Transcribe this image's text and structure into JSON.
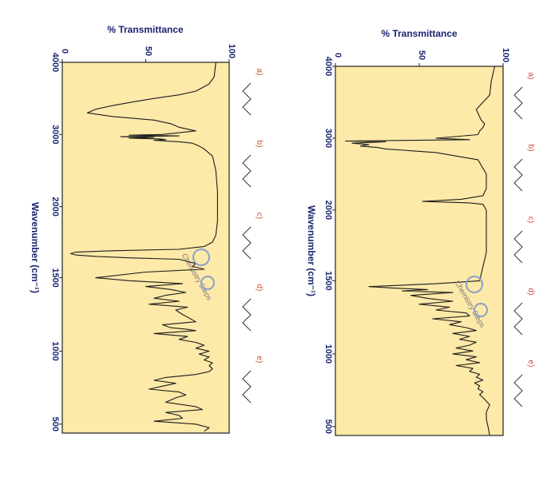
{
  "chart_data": [
    {
      "type": "line",
      "ylabel": "% Transmittance",
      "xlabel": "Wavenumber (cm⁻¹)",
      "xlim": [
        4000,
        450
      ],
      "ylim": [
        0,
        100
      ],
      "x_ticks": [
        "4000",
        "3000",
        "2000",
        "1500",
        "1000",
        "500"
      ],
      "y_ticks": [
        "0",
        "50",
        "100"
      ],
      "options": [
        "a)",
        "b)",
        "c)",
        "d)",
        "e)"
      ],
      "watermark": "Chemistry Steps",
      "background_color": "#fde9a8",
      "series": [
        {
          "x": [
            4000,
            3800,
            3600,
            3500,
            3400,
            3350,
            3300,
            3250,
            3200,
            3150,
            3100,
            3050,
            3000,
            2980,
            2960,
            2950,
            2930,
            2910,
            2890,
            2870,
            2850,
            2800,
            2700,
            2500,
            2300,
            2200,
            2150,
            2120,
            2100,
            2080,
            2000,
            1900,
            1800,
            1700,
            1650,
            1600,
            1550,
            1500,
            1480,
            1460,
            1450,
            1440,
            1430,
            1420,
            1400,
            1380,
            1360,
            1340,
            1320,
            1300,
            1280,
            1260,
            1240,
            1220,
            1200,
            1180,
            1160,
            1140,
            1120,
            1100,
            1080,
            1060,
            1040,
            1020,
            1000,
            980,
            960,
            940,
            920,
            900,
            880,
            860,
            840,
            820,
            800,
            780,
            760,
            740,
            720,
            700,
            650,
            600,
            550,
            500,
            450
          ],
          "y": [
            95,
            93,
            92,
            88,
            84,
            85,
            86,
            87,
            89,
            88,
            86,
            85,
            60,
            80,
            6,
            30,
            10,
            20,
            15,
            25,
            30,
            60,
            85,
            90,
            90,
            88,
            75,
            52,
            80,
            88,
            90,
            90,
            90,
            90,
            89,
            88,
            87,
            86,
            60,
            20,
            35,
            55,
            40,
            70,
            45,
            55,
            70,
            50,
            68,
            60,
            78,
            80,
            58,
            75,
            68,
            78,
            84,
            70,
            80,
            74,
            84,
            80,
            72,
            82,
            70,
            84,
            78,
            86,
            72,
            82,
            80,
            86,
            84,
            88,
            83,
            86,
            85,
            88,
            86,
            88,
            92,
            90,
            90,
            91,
            92
          ]
        }
      ]
    },
    {
      "type": "line",
      "ylabel": "% Transmittance",
      "xlabel": "Wavenumber (cm⁻¹)",
      "xlim": [
        4000,
        450
      ],
      "ylim": [
        0,
        100
      ],
      "x_ticks": [
        "4000",
        "3000",
        "2000",
        "1500",
        "1000",
        "500"
      ],
      "y_ticks": [
        "0",
        "50",
        "100"
      ],
      "options": [
        "a)",
        "b)",
        "c)",
        "d)",
        "e)"
      ],
      "watermark": "Chemistry Steps",
      "background_color": "#fde9a8",
      "series": [
        {
          "x": [
            4000,
            3800,
            3700,
            3600,
            3550,
            3500,
            3450,
            3400,
            3350,
            3300,
            3250,
            3200,
            3150,
            3100,
            3050,
            3000,
            2990,
            2980,
            2970,
            2960,
            2950,
            2940,
            2930,
            2920,
            2900,
            2880,
            2860,
            2840,
            2800,
            2700,
            2500,
            2200,
            2000,
            1900,
            1800,
            1750,
            1720,
            1700,
            1690,
            1680,
            1670,
            1660,
            1650,
            1640,
            1630,
            1600,
            1580,
            1560,
            1540,
            1500,
            1480,
            1460,
            1440,
            1420,
            1400,
            1380,
            1360,
            1340,
            1320,
            1300,
            1280,
            1250,
            1200,
            1180,
            1160,
            1150,
            1140,
            1120,
            1100,
            1080,
            1060,
            1040,
            1020,
            1000,
            980,
            960,
            940,
            920,
            900,
            880,
            860,
            840,
            820,
            800,
            780,
            760,
            740,
            720,
            700,
            680,
            650,
            620,
            600,
            580,
            560,
            540,
            520,
            500,
            480,
            460
          ],
          "y": [
            92,
            91,
            88,
            80,
            70,
            55,
            42,
            30,
            20,
            15,
            30,
            55,
            65,
            70,
            80,
            60,
            40,
            70,
            35,
            55,
            40,
            58,
            62,
            55,
            70,
            78,
            80,
            82,
            85,
            90,
            92,
            93,
            93,
            93,
            92,
            90,
            85,
            70,
            30,
            8,
            5,
            8,
            20,
            40,
            70,
            80,
            78,
            85,
            50,
            20,
            40,
            72,
            50,
            65,
            74,
            62,
            55,
            70,
            52,
            75,
            68,
            72,
            80,
            60,
            65,
            74,
            80,
            55,
            75,
            70,
            80,
            85,
            80,
            88,
            82,
            88,
            85,
            90,
            88,
            90,
            88,
            80,
            62,
            55,
            68,
            60,
            52,
            70,
            74,
            68,
            62,
            80,
            84,
            62,
            70,
            72,
            55,
            80,
            88,
            85
          ]
        }
      ]
    }
  ]
}
